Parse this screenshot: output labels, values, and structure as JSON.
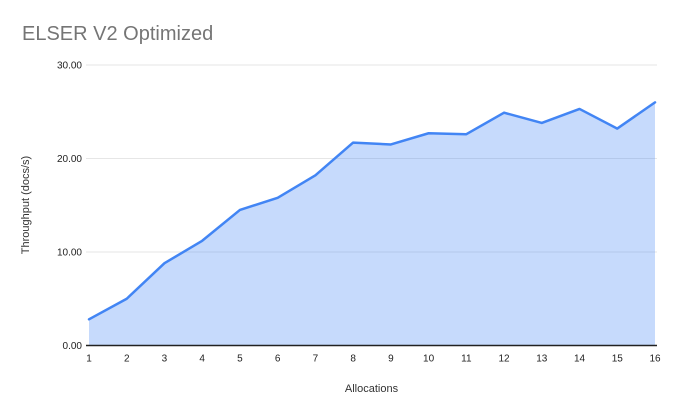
{
  "chart_data": {
    "type": "area",
    "title": "ELSER V2 Optimized",
    "xlabel": "Allocations",
    "ylabel": "Throughput (docs/s)",
    "x": [
      1,
      2,
      3,
      4,
      5,
      6,
      7,
      8,
      9,
      10,
      11,
      12,
      13,
      14,
      15,
      16
    ],
    "series": [
      {
        "name": "ELSER V2 Optimized",
        "values": [
          2.8,
          5.0,
          8.8,
          11.2,
          14.5,
          15.8,
          18.2,
          21.7,
          21.5,
          22.7,
          22.6,
          24.9,
          23.8,
          25.3,
          23.2,
          26.0
        ]
      }
    ],
    "ylim": [
      0,
      30
    ],
    "yticks": [
      0,
      10,
      20,
      30
    ],
    "ytick_labels": [
      "0.00",
      "10.00",
      "20.00",
      "30.00"
    ],
    "grid": true,
    "legend": "none",
    "colors": {
      "line": "#4285f4",
      "fill": "rgba(66,133,244,0.3)",
      "gridline": "#e6e6e6",
      "baseline": "#212121",
      "title_text": "#757575",
      "axis_text": "#222222"
    }
  }
}
